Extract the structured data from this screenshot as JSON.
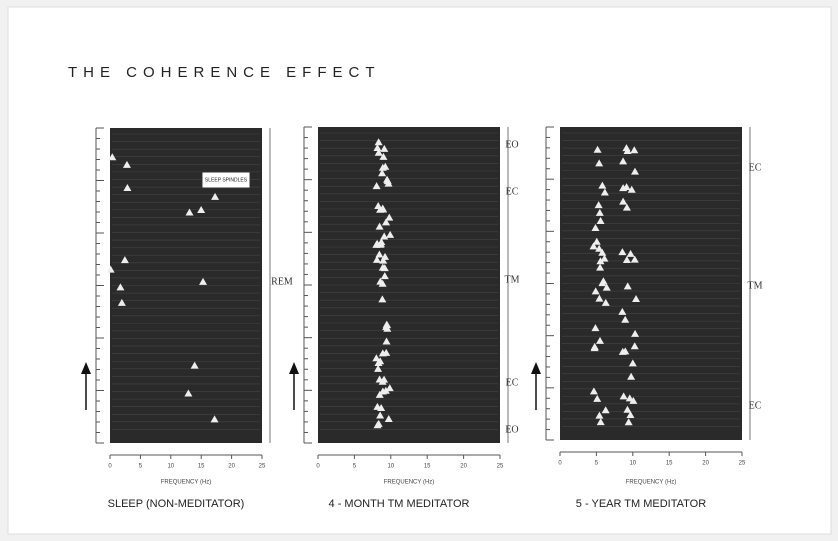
{
  "title": "THE COHERENCE EFFECT",
  "panels": [
    {
      "caption": "SLEEP (NON-MEDITATOR)",
      "x_label": "FREQUENCY (Hz)",
      "x_ticks": [
        "0",
        "5",
        "10",
        "15",
        "20",
        "25"
      ],
      "stages": [
        "REM"
      ],
      "annotation": "SLEEP SPINDLES"
    },
    {
      "caption": "4 - MONTH TM MEDITATOR",
      "x_label": "FREQUENCY (Hz)",
      "x_ticks": [
        "0",
        "5",
        "10",
        "15",
        "20",
        "25"
      ],
      "stages": [
        "EO",
        "EC",
        "TM",
        "EC",
        "EO"
      ]
    },
    {
      "caption": "5 - YEAR TM MEDITATOR",
      "x_label": "FREQUENCY (Hz)",
      "x_ticks": [
        "0",
        "5",
        "10",
        "15",
        "20",
        "25"
      ],
      "stages": [
        "EC",
        "TM",
        "EC"
      ]
    }
  ]
}
